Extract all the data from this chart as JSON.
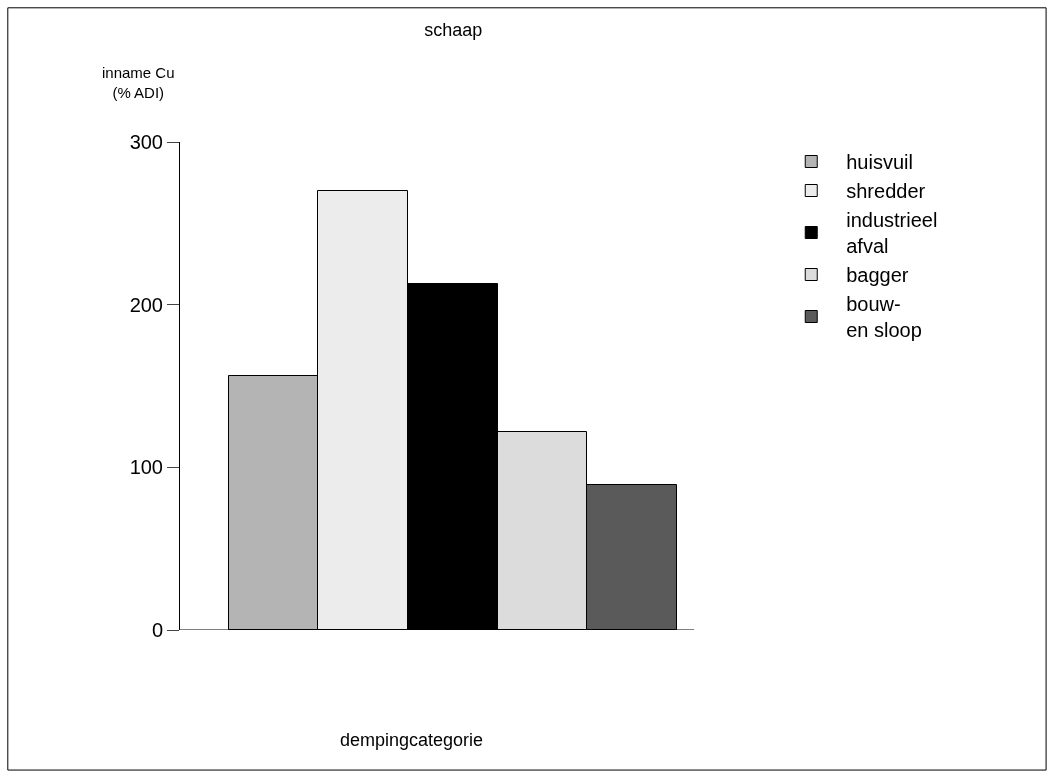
{
  "chart_data": {
    "type": "bar",
    "title": "schaap",
    "xlabel": "dempingcategorie",
    "ylabel": "inname Cu\n(% ADI)",
    "categories": [
      null
    ],
    "series": [
      {
        "name": "huisvuil",
        "color": "#b4b4b4",
        "values": [
          156
        ]
      },
      {
        "name": "shredder",
        "color": "#ececec",
        "values": [
          270
        ]
      },
      {
        "name": "industrieel\nafval",
        "color": "#000000",
        "values": [
          213
        ]
      },
      {
        "name": "bagger",
        "color": "#dcdcdc",
        "values": [
          122
        ]
      },
      {
        "name": "bouw-\nen sloop",
        "color": "#5a5a5a",
        "values": [
          89
        ]
      }
    ],
    "ylim": [
      0,
      300
    ],
    "yticks": [
      0,
      100,
      200,
      300
    ],
    "legend": "right"
  }
}
